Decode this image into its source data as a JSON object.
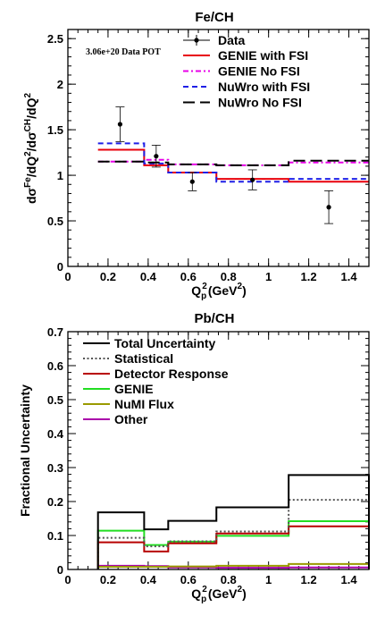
{
  "chart_data": [
    {
      "type": "line",
      "title": "Fe/CH",
      "xlabel": "Q_p^2(GeV^2)",
      "xlabel_parts": {
        "base": "Q",
        "sub": "p",
        "sup": "2",
        "unit": "(GeV",
        "unit_sup": "2",
        "close": ")"
      },
      "ylabel": "dσ^Fe/dQ^2/dσ^CH/dQ^2",
      "xlim": [
        0,
        1.5
      ],
      "ylim": [
        0,
        2.6
      ],
      "xticks": [
        0,
        0.2,
        0.4,
        0.6,
        0.8,
        1,
        1.2,
        1.4
      ],
      "xtick_labels": [
        "0",
        "0.2",
        "0.4",
        "0.6",
        "0.8",
        "1",
        "1.2",
        "1.4"
      ],
      "yticks": [
        0,
        0.5,
        1,
        1.5,
        2,
        2.5
      ],
      "ytick_labels": [
        "0",
        "0.5",
        "1",
        "1.5",
        "2",
        "2.5"
      ],
      "annotation": "3.06e+20 Data POT",
      "bin_edges": [
        0.15,
        0.38,
        0.5,
        0.74,
        1.1,
        1.5
      ],
      "data": {
        "name": "Data",
        "x": [
          0.26,
          0.44,
          0.62,
          0.92,
          1.3
        ],
        "y": [
          1.56,
          1.21,
          0.93,
          0.95,
          0.65
        ],
        "yerr": [
          0.19,
          0.12,
          0.1,
          0.11,
          0.18
        ]
      },
      "series": [
        {
          "name": "GENIE with FSI",
          "values": [
            1.28,
            1.11,
            1.03,
            0.96,
            0.93
          ],
          "color": "#e8000b",
          "dash": "none"
        },
        {
          "name": "GENIE No FSI",
          "values": [
            1.15,
            1.17,
            1.12,
            1.11,
            1.14
          ],
          "color": "#e800e8",
          "dash": "dashdot"
        },
        {
          "name": "NuWro with FSI",
          "values": [
            1.35,
            1.13,
            1.03,
            0.93,
            0.96
          ],
          "color": "#1f1fe6",
          "dash": "dash"
        },
        {
          "name": "NuWro No FSI",
          "values": [
            1.15,
            1.14,
            1.12,
            1.11,
            1.16
          ],
          "color": "#000000",
          "dash": "longdash"
        }
      ],
      "legend_position": "top-right"
    },
    {
      "type": "line",
      "title": "Pb/CH",
      "xlabel": "Q_p^2(GeV^2)",
      "xlabel_parts": {
        "base": "Q",
        "sub": "p",
        "sup": "2",
        "unit": "(GeV",
        "unit_sup": "2",
        "close": ")"
      },
      "ylabel": "Fractional Uncertainty",
      "xlim": [
        0,
        1.5
      ],
      "ylim": [
        0,
        0.7
      ],
      "xticks": [
        0,
        0.2,
        0.4,
        0.6,
        0.8,
        1,
        1.2,
        1.4
      ],
      "xtick_labels": [
        "0",
        "0.2",
        "0.4",
        "0.6",
        "0.8",
        "1",
        "1.2",
        "1.4"
      ],
      "yticks": [
        0,
        0.1,
        0.2,
        0.3,
        0.4,
        0.5,
        0.6,
        0.7
      ],
      "ytick_labels": [
        "0",
        "0.1",
        "0.2",
        "0.3",
        "0.4",
        "0.5",
        "0.6",
        "0.7"
      ],
      "bin_edges": [
        0.15,
        0.38,
        0.5,
        0.74,
        1.1,
        1.5
      ],
      "series": [
        {
          "name": "Total Uncertainty",
          "values": [
            0.168,
            0.118,
            0.143,
            0.183,
            0.278
          ],
          "color": "#000000",
          "dash": "none"
        },
        {
          "name": "Statistical",
          "values": [
            0.093,
            0.068,
            0.083,
            0.112,
            0.205
          ],
          "color": "#555555",
          "dash": "dot"
        },
        {
          "name": "Detector Response",
          "values": [
            0.08,
            0.053,
            0.077,
            0.106,
            0.127
          ],
          "color": "#b80000",
          "dash": "none"
        },
        {
          "name": "GENIE",
          "values": [
            0.114,
            0.072,
            0.082,
            0.099,
            0.142
          ],
          "color": "#22dd22",
          "dash": "none"
        },
        {
          "name": "NuMI Flux",
          "values": [
            0.008,
            0.008,
            0.009,
            0.011,
            0.016
          ],
          "color": "#9a9a00",
          "dash": "none"
        },
        {
          "name": "Other",
          "values": [
            0.011,
            0.01,
            0.006,
            0.005,
            0.006
          ],
          "color": "#aa00aa",
          "dash": "none"
        }
      ],
      "legend_position": "top-left"
    }
  ]
}
